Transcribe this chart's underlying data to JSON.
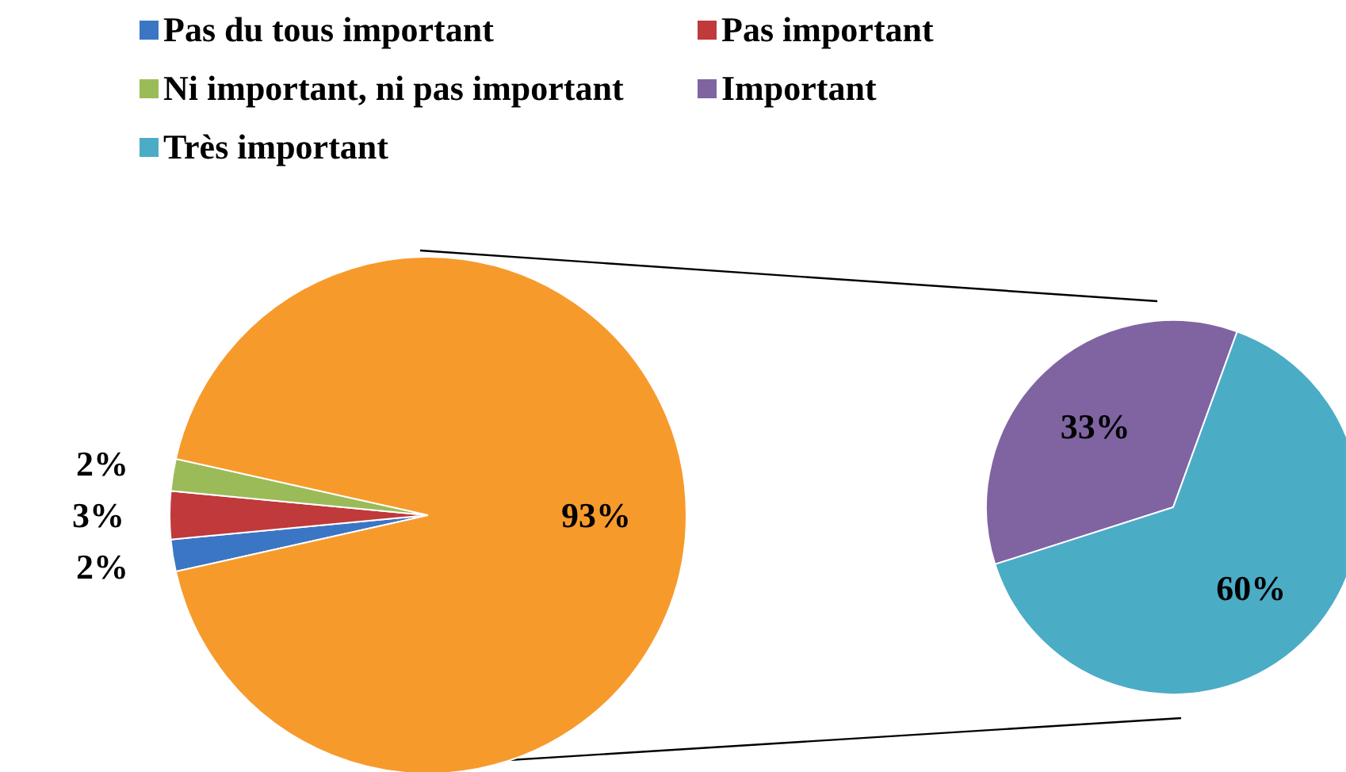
{
  "chart_data": [
    {
      "type": "pie",
      "categories": [
        "Pas du tous important",
        "Pas important",
        "Ni important, ni pas important",
        null
      ],
      "values": [
        2,
        3,
        2,
        93
      ],
      "colors": [
        "#3a76c4",
        "#c0393b",
        "#9bbb59",
        "#f79a2c"
      ],
      "value_labels": [
        "2%",
        "3%",
        "2%",
        "93%"
      ],
      "legend": "top"
    },
    {
      "type": "pie",
      "categories": [
        "Important",
        "Très important"
      ],
      "values": [
        33,
        60
      ],
      "colors": [
        "#8064a2",
        "#4bacc6"
      ],
      "value_labels": [
        "33%",
        "60%"
      ],
      "legend": "top"
    }
  ]
}
